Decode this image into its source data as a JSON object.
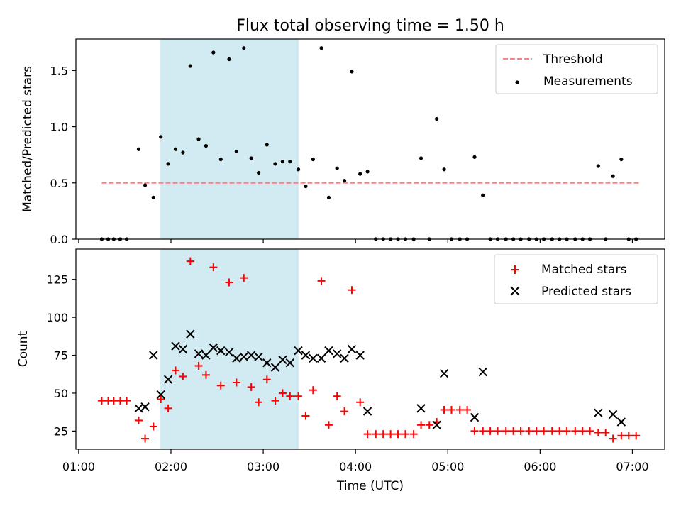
{
  "figure": {
    "title": "Flux total observing time = 1.50 h",
    "xlabel": "Time (UTC)",
    "x_ticks": [
      {
        "value": 1,
        "label": "01:00"
      },
      {
        "value": 2,
        "label": "02:00"
      },
      {
        "value": 3,
        "label": "03:00"
      },
      {
        "value": 4,
        "label": "04:00"
      },
      {
        "value": 5,
        "label": "05:00"
      },
      {
        "value": 6,
        "label": "06:00"
      },
      {
        "value": 7,
        "label": "07:00"
      }
    ],
    "xlim": [
      0.97,
      7.35
    ],
    "x_unit": "hours UTC",
    "shaded_span": {
      "x": [
        1.883,
        3.383
      ],
      "color": "#add8e6"
    }
  },
  "chart_data": [
    {
      "type": "scatter",
      "ylabel": "Matched/Predicted stars",
      "ylim": [
        0,
        1.78
      ],
      "y_ticks": [
        {
          "value": 0,
          "label": "0.0"
        },
        {
          "value": 0.5,
          "label": "0.5"
        },
        {
          "value": 1.0,
          "label": "1.0"
        },
        {
          "value": 1.5,
          "label": "1.5"
        }
      ],
      "grid": false,
      "legend": {
        "placement": "top-right",
        "entries": [
          "Threshold",
          "Measurements"
        ]
      },
      "threshold": {
        "name": "Threshold",
        "y": 0.5,
        "x": [
          1.25,
          7.07
        ],
        "color": "#ff7f7f",
        "style": "dashed"
      },
      "series": [
        {
          "name": "Measurements",
          "color": "#000000",
          "marker": "dot",
          "points": [
            [
              1.25,
              0
            ],
            [
              1.32,
              0
            ],
            [
              1.38,
              0
            ],
            [
              1.45,
              0
            ],
            [
              1.52,
              0
            ],
            [
              1.65,
              0.8
            ],
            [
              1.72,
              0.48
            ],
            [
              1.81,
              0.37
            ],
            [
              1.89,
              0.91
            ],
            [
              1.97,
              0.67
            ],
            [
              2.05,
              0.8
            ],
            [
              2.13,
              0.77
            ],
            [
              2.21,
              1.54
            ],
            [
              2.3,
              0.89
            ],
            [
              2.38,
              0.83
            ],
            [
              2.46,
              1.66
            ],
            [
              2.54,
              0.71
            ],
            [
              2.63,
              1.6
            ],
            [
              2.71,
              0.78
            ],
            [
              2.79,
              1.7
            ],
            [
              2.87,
              0.72
            ],
            [
              2.95,
              0.59
            ],
            [
              3.04,
              0.84
            ],
            [
              3.13,
              0.67
            ],
            [
              3.21,
              0.69
            ],
            [
              3.29,
              0.69
            ],
            [
              3.38,
              0.62
            ],
            [
              3.46,
              0.47
            ],
            [
              3.54,
              0.71
            ],
            [
              3.63,
              1.7
            ],
            [
              3.71,
              0.37
            ],
            [
              3.8,
              0.63
            ],
            [
              3.88,
              0.52
            ],
            [
              3.96,
              1.49
            ],
            [
              4.05,
              0.58
            ],
            [
              4.13,
              0.6
            ],
            [
              4.22,
              0
            ],
            [
              4.3,
              0
            ],
            [
              4.38,
              0
            ],
            [
              4.46,
              0
            ],
            [
              4.54,
              0
            ],
            [
              4.63,
              0
            ],
            [
              4.71,
              0.72
            ],
            [
              4.8,
              0
            ],
            [
              4.88,
              1.07
            ],
            [
              4.96,
              0.62
            ],
            [
              5.04,
              0
            ],
            [
              5.13,
              0
            ],
            [
              5.21,
              0
            ],
            [
              5.29,
              0.73
            ],
            [
              5.38,
              0.39
            ],
            [
              5.46,
              0
            ],
            [
              5.54,
              0
            ],
            [
              5.63,
              0
            ],
            [
              5.71,
              0
            ],
            [
              5.79,
              0
            ],
            [
              5.88,
              0
            ],
            [
              5.96,
              0
            ],
            [
              6.04,
              0
            ],
            [
              6.13,
              0
            ],
            [
              6.21,
              0
            ],
            [
              6.29,
              0
            ],
            [
              6.38,
              0
            ],
            [
              6.46,
              0
            ],
            [
              6.54,
              0
            ],
            [
              6.63,
              0.65
            ],
            [
              6.71,
              0
            ],
            [
              6.79,
              0.56
            ],
            [
              6.88,
              0.71
            ],
            [
              6.96,
              0
            ],
            [
              7.04,
              0
            ]
          ]
        }
      ]
    },
    {
      "type": "scatter",
      "ylabel": "Count",
      "ylim": [
        13,
        145
      ],
      "y_ticks": [
        {
          "value": 25,
          "label": "25"
        },
        {
          "value": 50,
          "label": "50"
        },
        {
          "value": 75,
          "label": "75"
        },
        {
          "value": 100,
          "label": "100"
        },
        {
          "value": 125,
          "label": "125"
        }
      ],
      "grid": false,
      "legend": {
        "placement": "top-right",
        "entries": [
          "Matched stars",
          "Predicted stars"
        ]
      },
      "series": [
        {
          "name": "Matched stars",
          "color": "#ff0000",
          "marker": "plus",
          "points": [
            [
              1.25,
              45
            ],
            [
              1.32,
              45
            ],
            [
              1.38,
              45
            ],
            [
              1.45,
              45
            ],
            [
              1.52,
              45
            ],
            [
              1.65,
              32
            ],
            [
              1.72,
              20
            ],
            [
              1.81,
              28
            ],
            [
              1.89,
              46
            ],
            [
              1.97,
              40
            ],
            [
              2.05,
              65
            ],
            [
              2.13,
              61
            ],
            [
              2.21,
              137
            ],
            [
              2.3,
              68
            ],
            [
              2.38,
              62
            ],
            [
              2.46,
              133
            ],
            [
              2.54,
              55
            ],
            [
              2.63,
              123
            ],
            [
              2.71,
              57
            ],
            [
              2.79,
              126
            ],
            [
              2.87,
              54
            ],
            [
              2.95,
              44
            ],
            [
              3.04,
              59
            ],
            [
              3.13,
              45
            ],
            [
              3.21,
              50
            ],
            [
              3.29,
              48
            ],
            [
              3.38,
              48
            ],
            [
              3.46,
              35
            ],
            [
              3.54,
              52
            ],
            [
              3.63,
              124
            ],
            [
              3.71,
              29
            ],
            [
              3.8,
              48
            ],
            [
              3.88,
              38
            ],
            [
              3.96,
              118
            ],
            [
              4.05,
              44
            ],
            [
              4.13,
              23
            ],
            [
              4.22,
              23
            ],
            [
              4.3,
              23
            ],
            [
              4.38,
              23
            ],
            [
              4.46,
              23
            ],
            [
              4.54,
              23
            ],
            [
              4.63,
              23
            ],
            [
              4.71,
              29
            ],
            [
              4.8,
              29
            ],
            [
              4.88,
              31
            ],
            [
              4.96,
              39
            ],
            [
              5.04,
              39
            ],
            [
              5.13,
              39
            ],
            [
              5.21,
              39
            ],
            [
              5.29,
              25
            ],
            [
              5.38,
              25
            ],
            [
              5.46,
              25
            ],
            [
              5.54,
              25
            ],
            [
              5.63,
              25
            ],
            [
              5.71,
              25
            ],
            [
              5.79,
              25
            ],
            [
              5.88,
              25
            ],
            [
              5.96,
              25
            ],
            [
              6.04,
              25
            ],
            [
              6.13,
              25
            ],
            [
              6.21,
              25
            ],
            [
              6.29,
              25
            ],
            [
              6.38,
              25
            ],
            [
              6.46,
              25
            ],
            [
              6.54,
              25
            ],
            [
              6.63,
              24
            ],
            [
              6.71,
              24
            ],
            [
              6.79,
              20
            ],
            [
              6.88,
              22
            ],
            [
              6.96,
              22
            ],
            [
              7.04,
              22
            ]
          ]
        },
        {
          "name": "Predicted stars",
          "color": "#000000",
          "marker": "x",
          "points": [
            [
              1.65,
              40
            ],
            [
              1.72,
              41
            ],
            [
              1.81,
              75
            ],
            [
              1.89,
              49
            ],
            [
              1.97,
              59
            ],
            [
              2.05,
              81
            ],
            [
              2.13,
              79
            ],
            [
              2.21,
              89
            ],
            [
              2.3,
              76
            ],
            [
              2.38,
              75
            ],
            [
              2.46,
              80
            ],
            [
              2.54,
              78
            ],
            [
              2.63,
              77
            ],
            [
              2.71,
              73
            ],
            [
              2.79,
              74
            ],
            [
              2.87,
              75
            ],
            [
              2.95,
              74
            ],
            [
              3.04,
              70
            ],
            [
              3.13,
              67
            ],
            [
              3.21,
              72
            ],
            [
              3.29,
              70
            ],
            [
              3.38,
              78
            ],
            [
              3.46,
              75
            ],
            [
              3.54,
              73
            ],
            [
              3.63,
              73
            ],
            [
              3.71,
              78
            ],
            [
              3.8,
              76
            ],
            [
              3.88,
              73
            ],
            [
              3.96,
              79
            ],
            [
              4.05,
              75
            ],
            [
              4.13,
              38
            ],
            [
              4.71,
              40
            ],
            [
              4.88,
              29
            ],
            [
              4.96,
              63
            ],
            [
              5.29,
              34
            ],
            [
              5.38,
              64
            ],
            [
              6.63,
              37
            ],
            [
              6.79,
              36
            ],
            [
              6.88,
              31
            ]
          ]
        }
      ]
    }
  ]
}
